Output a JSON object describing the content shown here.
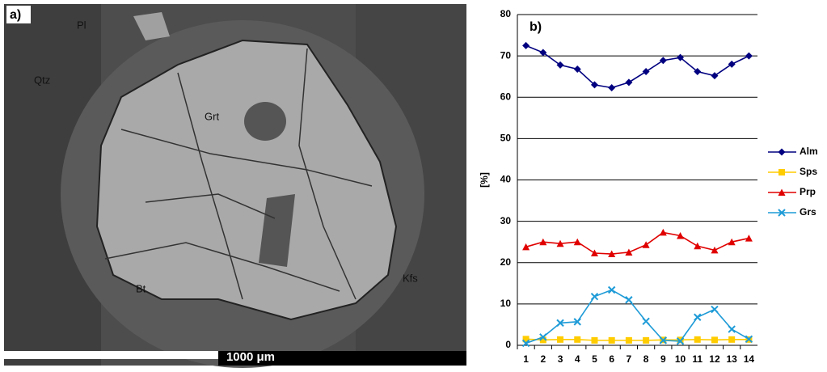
{
  "image": {
    "panel_label": "a)",
    "labels": [
      "Pl",
      "Qtz",
      "Grt",
      "Bt",
      "Kfs"
    ],
    "scale_bar": "1000 μm"
  },
  "chart_data": {
    "type": "line",
    "panel_label": "b)",
    "y_label": "[%]",
    "categories": [
      "1",
      "2",
      "3",
      "4",
      "5",
      "6",
      "7",
      "8",
      "9",
      "10",
      "11",
      "12",
      "13",
      "14"
    ],
    "ylim": [
      0,
      80
    ],
    "yticks": [
      0,
      10,
      20,
      30,
      40,
      50,
      60,
      70,
      80
    ],
    "grid": true,
    "legend": "right",
    "series": [
      {
        "name": "Alm",
        "color": "#000080",
        "marker": "diamond",
        "values": [
          72.5,
          70.8,
          67.8,
          66.8,
          63,
          62.3,
          63.6,
          66.2,
          68.9,
          69.6,
          66.2,
          65.2,
          68,
          70
        ]
      },
      {
        "name": "Sps",
        "color": "#ffcc00",
        "marker": "square",
        "values": [
          1.5,
          1.3,
          1.4,
          1.4,
          1.2,
          1.2,
          1.2,
          1.2,
          1.3,
          1.3,
          1.4,
          1.3,
          1.4,
          1.4
        ]
      },
      {
        "name": "Prp",
        "color": "#e00000",
        "marker": "triangle",
        "values": [
          23.8,
          25,
          24.6,
          25,
          22.3,
          22.1,
          22.5,
          24.3,
          27.3,
          26.5,
          24,
          23,
          25,
          25.9
        ]
      },
      {
        "name": "Grs",
        "color": "#1e9bd7",
        "marker": "cross",
        "values": [
          0.5,
          2,
          5.4,
          5.7,
          11.8,
          13.4,
          11,
          5.8,
          1.2,
          1,
          6.8,
          8.7,
          3.9,
          1.5
        ]
      }
    ]
  }
}
